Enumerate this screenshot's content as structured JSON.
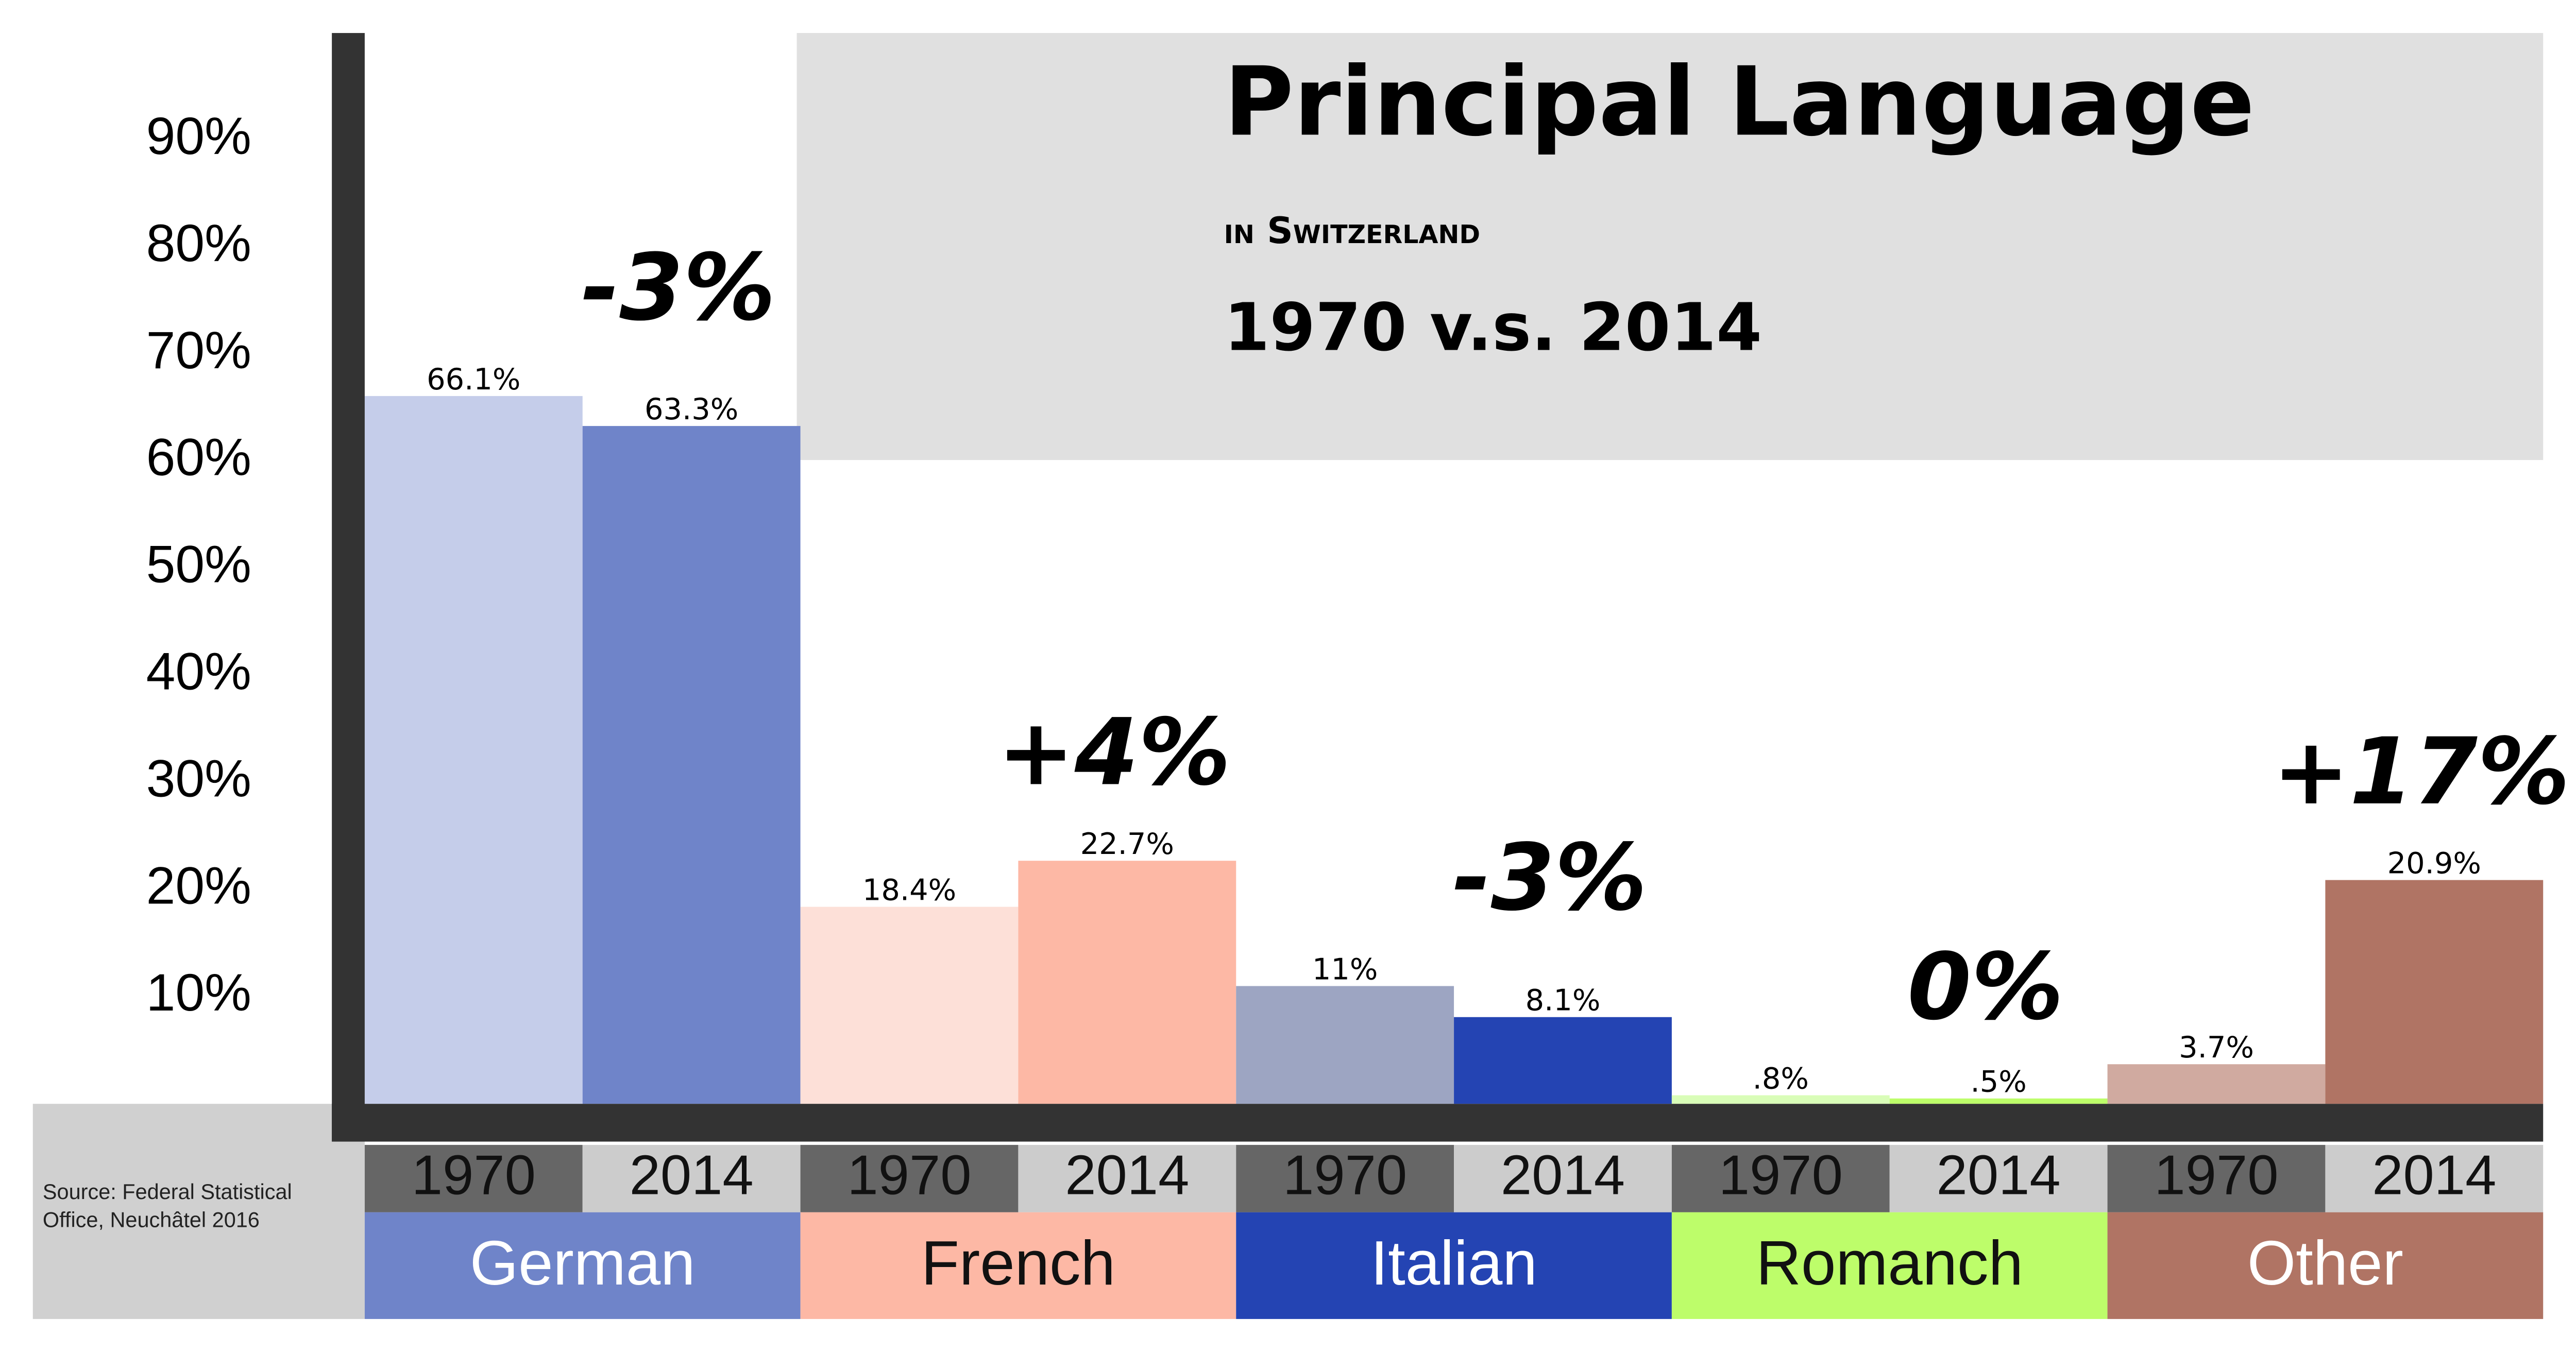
{
  "chart_data": {
    "type": "bar",
    "title": "Principal Language",
    "subtitle": "in Switzerland",
    "comparison": "1970 v.s. 2014",
    "source": "Source:  Federal Statistical Office, Neuchâtel 2016",
    "categories": [
      "German",
      "French",
      "Italian",
      "Romanch",
      "Other"
    ],
    "category_colors": [
      "#6f84c9",
      "#fdb8a5",
      "#2444b3",
      "#bdfd6a",
      "#b07464"
    ],
    "series": [
      {
        "name": "1970",
        "label_color": "#666666",
        "colors": [
          "#c5cdea",
          "#fde0d8",
          "#9da5c2",
          "#d9fdb8",
          "#d0aaa0"
        ],
        "values": [
          66.1,
          18.4,
          11,
          0.8,
          3.7
        ],
        "value_labels": [
          "66.1%",
          "18.4%",
          "11%",
          ".8%",
          "3.7%"
        ]
      },
      {
        "name": "2014",
        "label_color": "#cccccc",
        "colors": [
          "#6f84c9",
          "#fdb8a5",
          "#2444b3",
          "#bdfd6a",
          "#b07464"
        ],
        "values": [
          63.3,
          22.7,
          8.1,
          0.5,
          20.9
        ],
        "value_labels": [
          "63.3%",
          "22.7%",
          "8.1%",
          ".5%",
          "20.9%"
        ]
      }
    ],
    "change_labels": [
      "-3%",
      "+4%",
      "-3%",
      "0%",
      "+17%"
    ],
    "ylim": [
      0,
      100
    ],
    "yticks": [
      {
        "value": 10,
        "label": "10%"
      },
      {
        "value": 20,
        "label": "20%"
      },
      {
        "value": 30,
        "label": "30%"
      },
      {
        "value": 40,
        "label": "40%"
      },
      {
        "value": 50,
        "label": "50%"
      },
      {
        "value": 60,
        "label": "60%"
      },
      {
        "value": 70,
        "label": "70%"
      },
      {
        "value": 80,
        "label": "80%"
      },
      {
        "value": 90,
        "label": "90%"
      }
    ],
    "grid": false
  }
}
